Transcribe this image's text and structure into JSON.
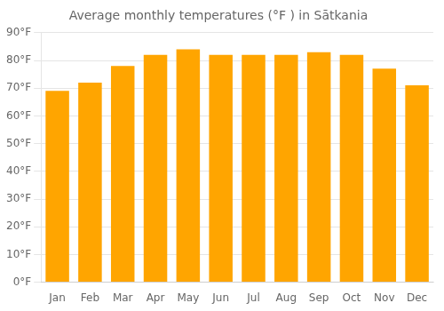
{
  "chart_data": {
    "type": "bar",
    "title": "Average monthly temperatures (°F ) in Sātkania",
    "categories": [
      "Jan",
      "Feb",
      "Mar",
      "Apr",
      "May",
      "Jun",
      "Jul",
      "Aug",
      "Sep",
      "Oct",
      "Nov",
      "Dec"
    ],
    "values": [
      69,
      72,
      78,
      82,
      84,
      82,
      82,
      82,
      83,
      82,
      77,
      71
    ],
    "color": "#FFA500",
    "ylim": [
      0,
      90
    ],
    "yticks": [
      {
        "value": 0,
        "label": "0°F"
      },
      {
        "value": 10,
        "label": "10°F"
      },
      {
        "value": 20,
        "label": "20°F"
      },
      {
        "value": 30,
        "label": "30°F"
      },
      {
        "value": 40,
        "label": "40°F"
      },
      {
        "value": 50,
        "label": "50°F"
      },
      {
        "value": 60,
        "label": "60°F"
      },
      {
        "value": 70,
        "label": "70°F"
      },
      {
        "value": 80,
        "label": "80°F"
      },
      {
        "value": 90,
        "label": "90°F"
      }
    ],
    "grid": true
  }
}
